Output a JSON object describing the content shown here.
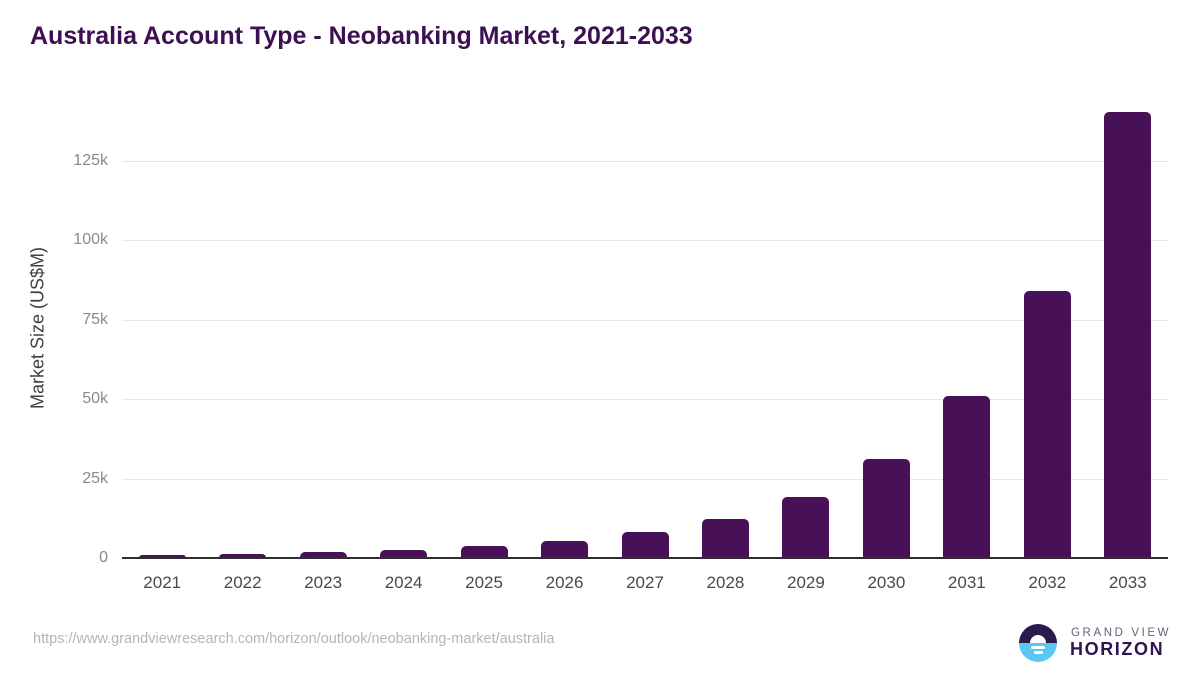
{
  "title": "Australia Account Type - Neobanking Market, 2021-2033",
  "footer": {
    "source_url": "https://www.grandviewresearch.com/horizon/outlook/neobanking-market/australia",
    "logo": {
      "icon": "horizon-sun-icon",
      "brand_top": "GRAND VIEW",
      "brand_bottom": "HORIZON"
    }
  },
  "colors": {
    "bar": "#481157",
    "title": "#3c1053",
    "gridline": "#e7e7e7",
    "axis": "#2e2e2e",
    "ytick": "#8a8a8a",
    "xtick": "#4a4a4a",
    "ylabel": "#3f3f3f",
    "url": "#b5b5b5",
    "logo_dark": "#2b1b4d",
    "logo_blue": "#5bc7f3",
    "logo_gray": "#63637a",
    "logo_purple": "#2d1650"
  },
  "chart_data": {
    "type": "bar",
    "title": "Australia Account Type - Neobanking Market, 2021-2033",
    "categories": [
      "2021",
      "2022",
      "2023",
      "2024",
      "2025",
      "2026",
      "2027",
      "2028",
      "2029",
      "2030",
      "2031",
      "2032",
      "2033"
    ],
    "values": [
      850,
      1250,
      1900,
      2600,
      3650,
      5500,
      8300,
      12250,
      19350,
      31100,
      51000,
      84000,
      140400
    ],
    "xlabel": "",
    "ylabel": "Market Size (US$M)",
    "yticks": [
      {
        "value": 0,
        "label": "0"
      },
      {
        "value": 25000,
        "label": "25k"
      },
      {
        "value": 50000,
        "label": "50k"
      },
      {
        "value": 75000,
        "label": "75k"
      },
      {
        "value": 100000,
        "label": "100k"
      },
      {
        "value": 125000,
        "label": "125k"
      }
    ],
    "ylim": [
      0,
      142000
    ],
    "grid": "horizontal",
    "legend": "none",
    "bar_color": "#481157"
  }
}
